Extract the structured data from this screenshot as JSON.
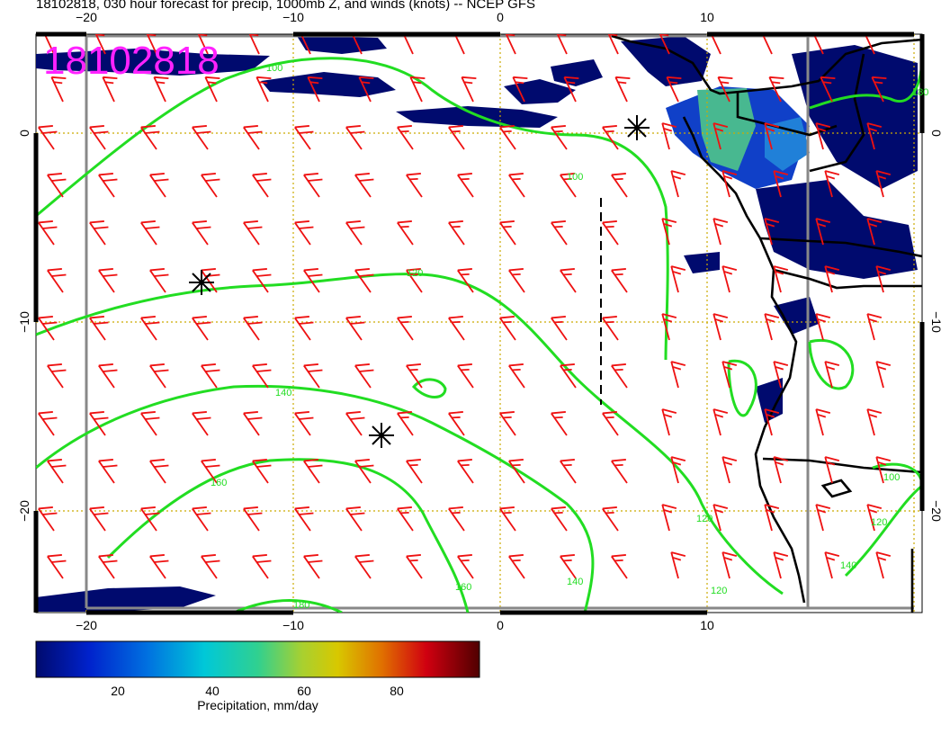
{
  "title": "18102818, 030 hour forecast for precip, 1000mb Z, and winds (knots) -- NCEP GFS",
  "stamp": "18102818",
  "axes": {
    "lon_ticks": [
      "−20",
      "−10",
      "0",
      "10"
    ],
    "lat_ticks": [
      "0",
      "−10",
      "−20"
    ]
  },
  "contours": {
    "labels": [
      "100",
      "100",
      "100",
      "120",
      "120",
      "120",
      "120",
      "140",
      "140",
      "140",
      "160",
      "160",
      "180",
      "180"
    ]
  },
  "colorbar": {
    "ticks": [
      "20",
      "40",
      "60",
      "80"
    ],
    "title": "Precipitation, mm/day"
  },
  "colors": {
    "contour": "#22dd22",
    "wind": "#ee1111",
    "precip_low": "#000a6e",
    "stamp": "#ff22ff",
    "grid": "#ccaa00"
  }
}
